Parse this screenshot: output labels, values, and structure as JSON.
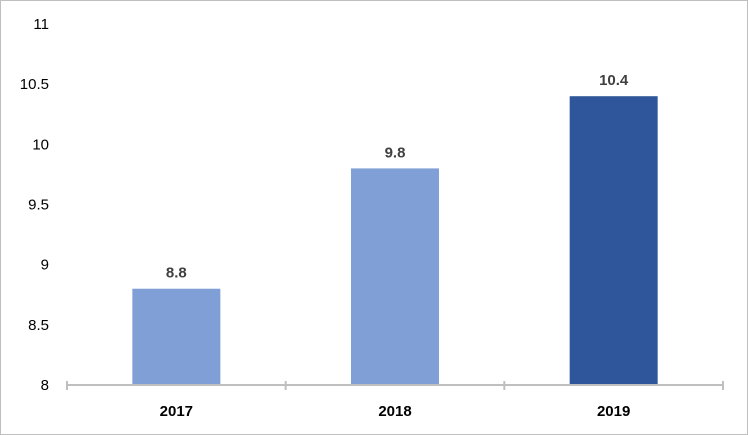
{
  "chart_data": {
    "type": "bar",
    "categories": [
      "2017",
      "2018",
      "2019"
    ],
    "values": [
      8.8,
      9.8,
      10.4
    ],
    "data_labels": [
      "8.8",
      "9.8",
      "10.4"
    ],
    "title": "",
    "xlabel": "",
    "ylabel": "",
    "ylim": [
      8,
      11
    ],
    "y_ticks": [
      "8",
      "8.5",
      "9",
      "9.5",
      "10",
      "10.5",
      "11"
    ],
    "grid": false,
    "legend": "none",
    "bar_colors": [
      "#7f9fd6",
      "#7f9fd6",
      "#2f569a"
    ],
    "axis_color": "#bfbfbf"
  }
}
